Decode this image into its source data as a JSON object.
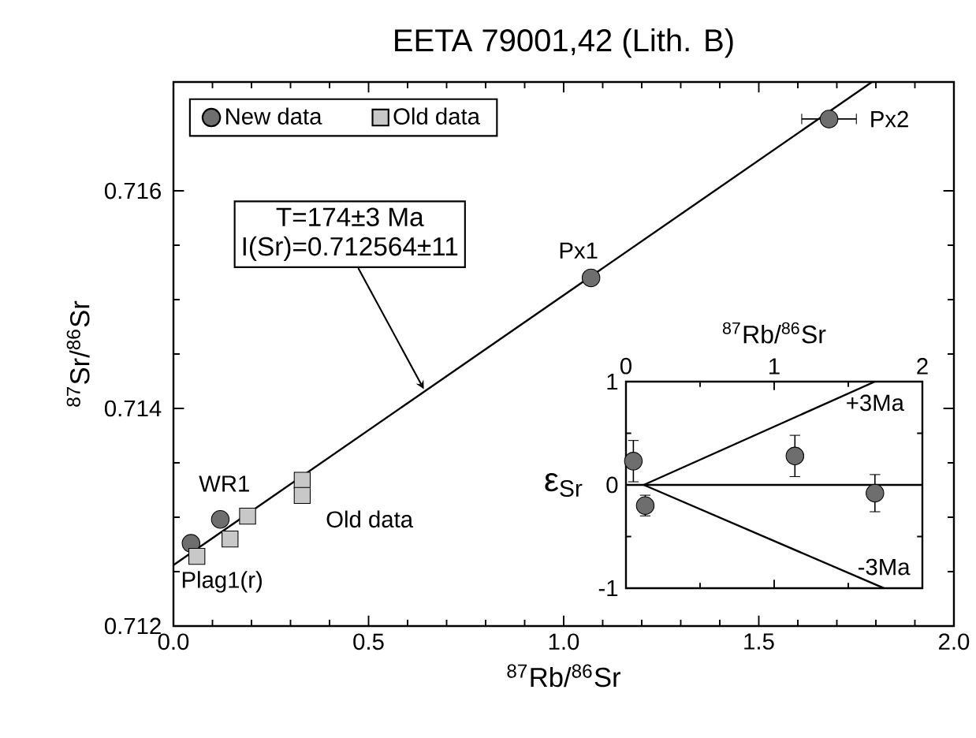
{
  "chart_data": [
    {
      "type": "scatter",
      "title": "EETA 79001,42 (Lith. B)",
      "xlabel": "$^{87}$Rb/$^{86}$Sr",
      "ylabel": "$^{87}$Sr/$^{86}$Sr",
      "xlim": [
        0,
        2
      ],
      "ylim": [
        0.712,
        0.717
      ],
      "xticks": [
        {
          "value": 0,
          "label": "0.0"
        },
        0.5,
        {
          "value": 1,
          "label": "1.0"
        },
        1.5,
        {
          "value": 2,
          "label": "2.0"
        }
      ],
      "yticks": [
        0.712,
        0.714,
        0.716
      ],
      "legend": "top left",
      "series": [
        {
          "name": "New data",
          "marker": "circle",
          "color": "#6e6e6e",
          "x": [
            0.045,
            0.12,
            1.07,
            1.68
          ],
          "values": [
            0.71276,
            0.71298,
            0.7152,
            0.71666
          ],
          "xerrors": [
            null,
            null,
            null,
            0.07
          ]
        },
        {
          "name": "Old data",
          "marker": "square",
          "color": "#c8c8c8",
          "x": [
            0.06,
            0.145,
            0.19,
            0.33,
            0.33
          ],
          "values": [
            0.71264,
            0.7128,
            0.71301,
            0.71334,
            0.7132
          ]
        },
        {
          "type": "line",
          "color": "#000000",
          "x": [
            0,
            1.79
          ],
          "values": [
            0.71256,
            0.717
          ]
        }
      ],
      "annotations": [
        "T=174±3 Ma",
        "I(Sr)=0.712564±11",
        {
          "text": "Px1",
          "x": 1.07,
          "y": 0.7152
        },
        {
          "text": "Px2",
          "x": 1.68,
          "y": 0.71666
        },
        {
          "text": "WR1",
          "x": 0.12,
          "y": 0.71298
        },
        {
          "text": "Old data",
          "x": 0.33,
          "y": 0.7132
        },
        {
          "text": "Plag1(r)",
          "x": 0.045,
          "y": 0.71276
        }
      ]
    },
    {
      "type": "scatter",
      "xlabel": "$^{87}$Rb/$^{86}$Sr",
      "ylabel": "ε$_{Sr}$",
      "xlim": [
        0,
        2
      ],
      "ylim": [
        -1,
        1
      ],
      "xticks": [
        0,
        1,
        2
      ],
      "yticks": [
        -1,
        0,
        1
      ],
      "legend": "right",
      "series": [
        {
          "type": "line",
          "name": "+3Ma",
          "color": "#000000",
          "x": [
            0.12,
            1.68
          ],
          "values": [
            0,
            1
          ]
        },
        {
          "type": "line",
          "name": "-3Ma",
          "color": "#000000",
          "x": [
            0.12,
            1.74
          ],
          "values": [
            0,
            -1
          ]
        },
        {
          "type": "line",
          "color": "#000000",
          "x": [
            0,
            2
          ],
          "values": [
            0,
            0
          ]
        },
        {
          "marker": "circle",
          "color": "#6e6e6e",
          "x": [
            0.05,
            0.13,
            1.14,
            1.68
          ],
          "values": [
            0.23,
            -0.2,
            0.28,
            -0.08
          ],
          "errors": [
            0.2,
            0.1,
            0.2,
            0.18
          ]
        }
      ]
    }
  ]
}
